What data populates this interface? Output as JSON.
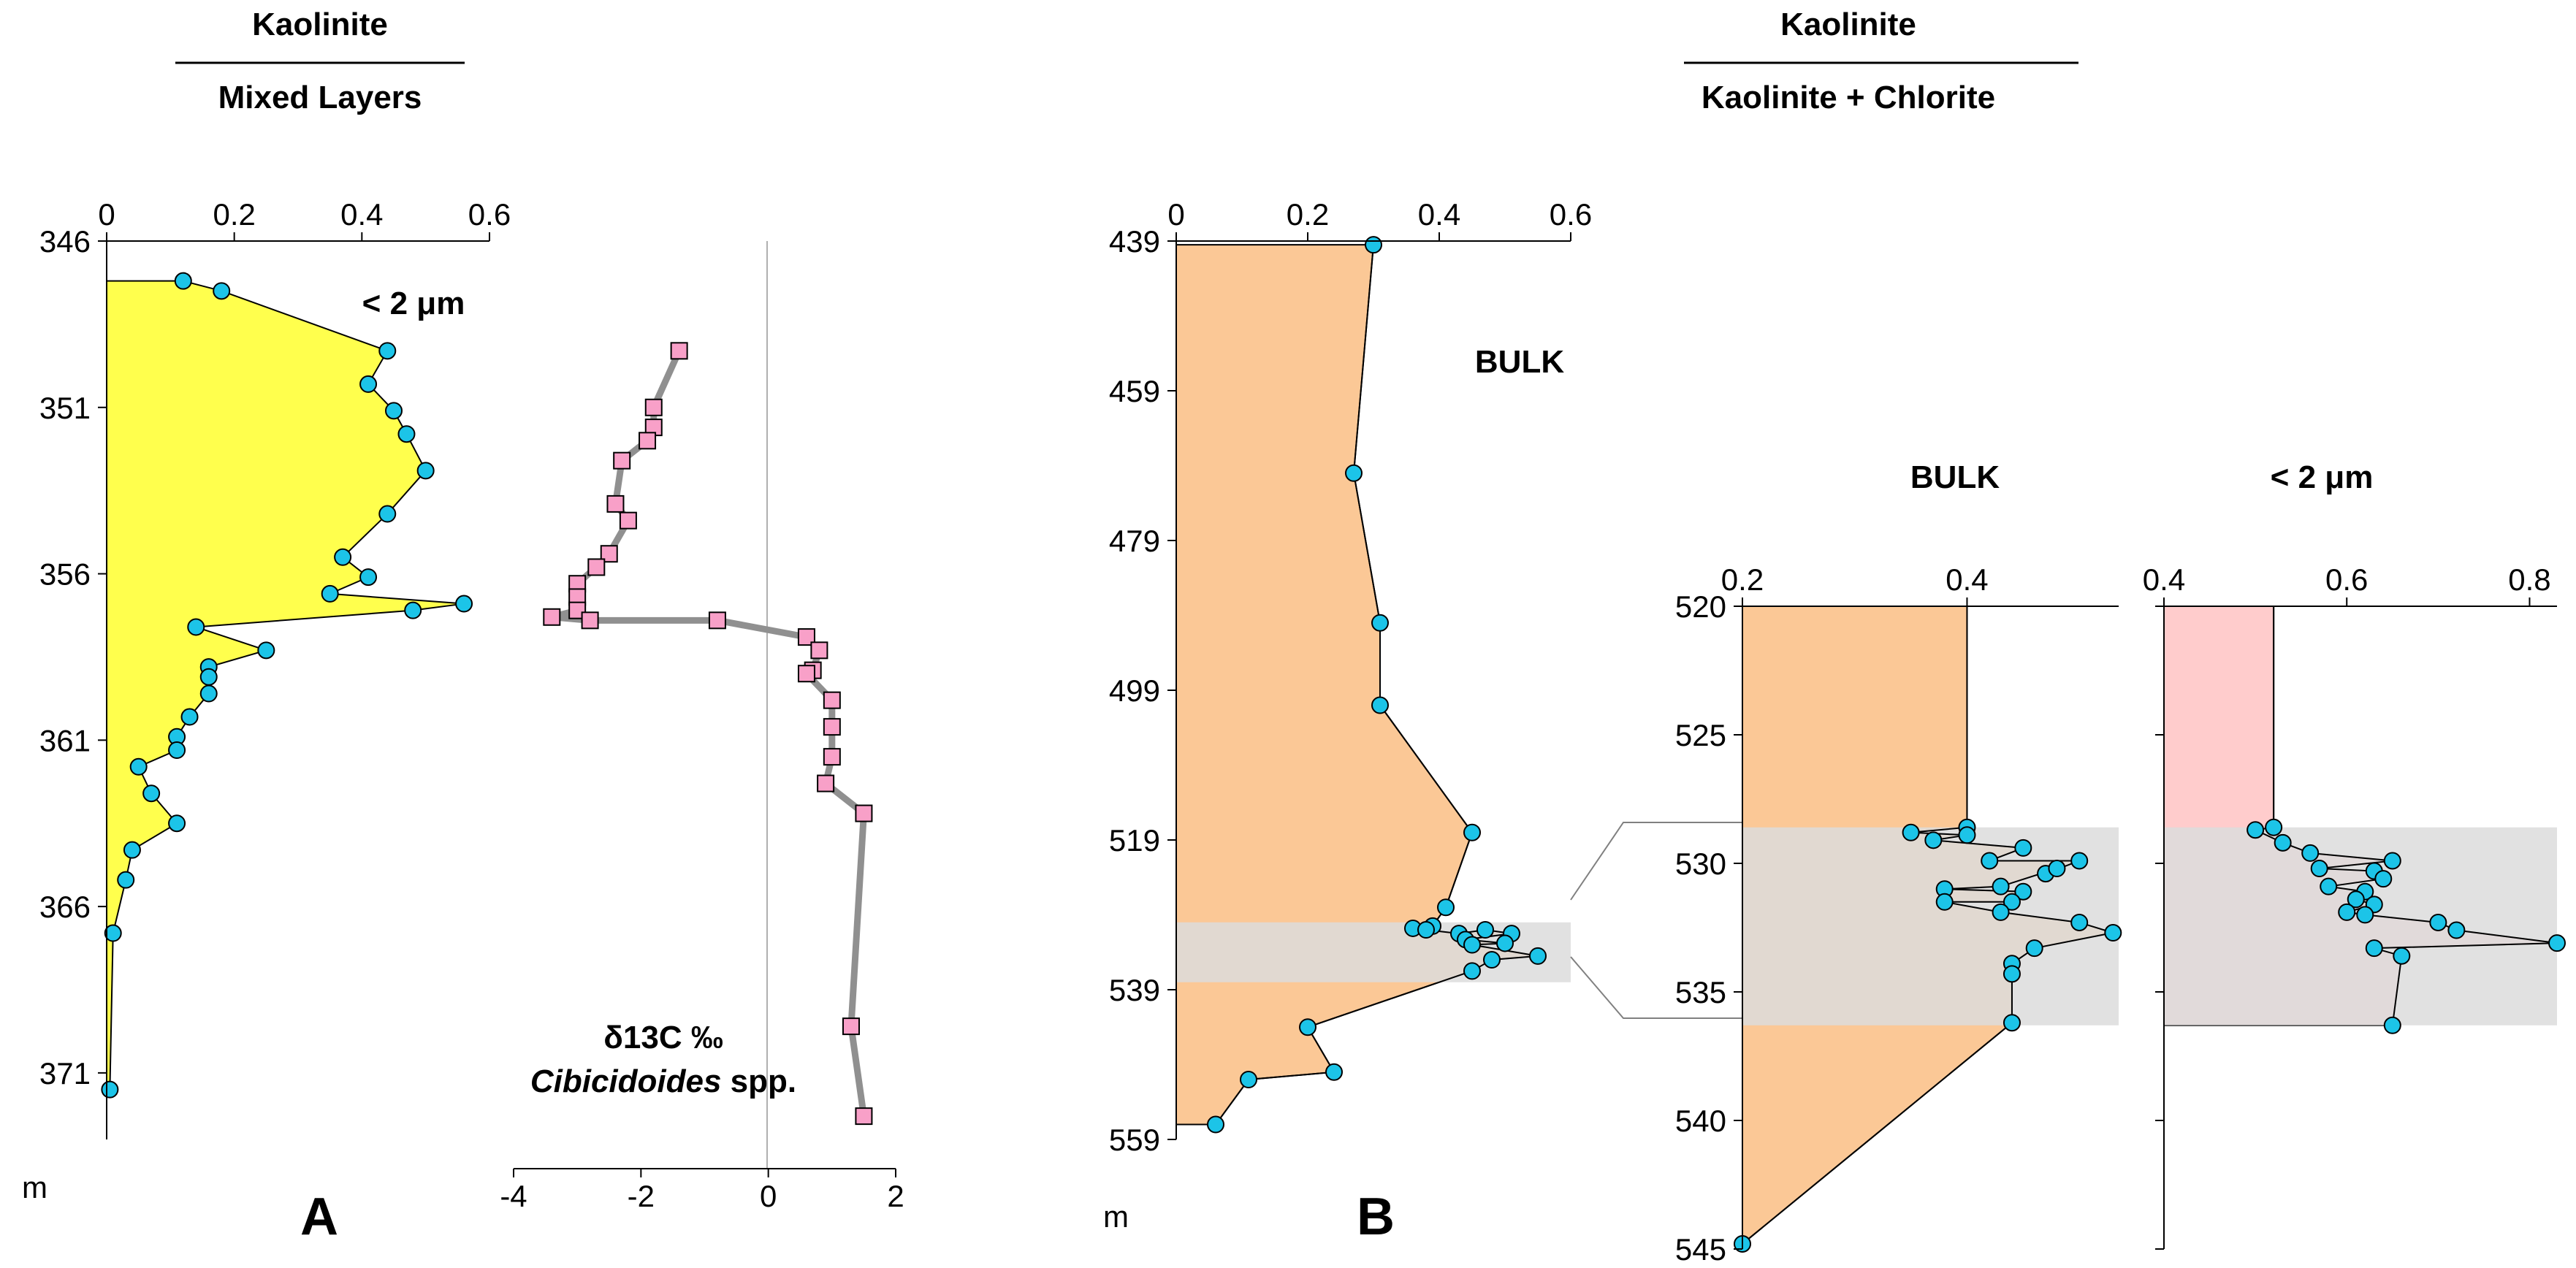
{
  "panel_letters": {
    "a": "A",
    "b": "B"
  },
  "colors": {
    "yellow_fill": "#ffff4d",
    "orange_fill": "#fbc896",
    "pink_fill": "#ffcccc",
    "band_grey": "#dcdcdc",
    "marker_cyan": "#1cc4e8",
    "marker_pink": "#f8a0c8",
    "d13c_line": "#909090"
  },
  "chart_data": [
    {
      "id": "A_ratio",
      "type": "area",
      "title_top": "Kaolinite",
      "title_bottom": "Mixed Layers",
      "series_label": "< 2 μm",
      "x_ticks": [
        "0",
        "0.2",
        "0.4",
        "0.6"
      ],
      "x_range": [
        0,
        0.6
      ],
      "y_ticks": [
        "346",
        "351",
        "356",
        "361",
        "366",
        "371"
      ],
      "y_range": [
        346,
        373
      ],
      "y_unit": "m",
      "points": [
        {
          "x": 0.12,
          "y": 347.2
        },
        {
          "x": 0.18,
          "y": 347.5
        },
        {
          "x": 0.44,
          "y": 349.3
        },
        {
          "x": 0.41,
          "y": 350.3
        },
        {
          "x": 0.45,
          "y": 351.1
        },
        {
          "x": 0.47,
          "y": 351.8
        },
        {
          "x": 0.5,
          "y": 352.9
        },
        {
          "x": 0.44,
          "y": 354.2
        },
        {
          "x": 0.37,
          "y": 355.5
        },
        {
          "x": 0.41,
          "y": 356.1
        },
        {
          "x": 0.35,
          "y": 356.6
        },
        {
          "x": 0.56,
          "y": 356.9
        },
        {
          "x": 0.48,
          "y": 357.1
        },
        {
          "x": 0.14,
          "y": 357.6
        },
        {
          "x": 0.25,
          "y": 358.3
        },
        {
          "x": 0.16,
          "y": 358.8
        },
        {
          "x": 0.16,
          "y": 359.1
        },
        {
          "x": 0.16,
          "y": 359.6
        },
        {
          "x": 0.13,
          "y": 360.3
        },
        {
          "x": 0.11,
          "y": 360.9
        },
        {
          "x": 0.11,
          "y": 361.3
        },
        {
          "x": 0.05,
          "y": 361.8
        },
        {
          "x": 0.07,
          "y": 362.6
        },
        {
          "x": 0.11,
          "y": 363.5
        },
        {
          "x": 0.04,
          "y": 364.3
        },
        {
          "x": 0.03,
          "y": 365.2
        },
        {
          "x": 0.01,
          "y": 366.8
        },
        {
          "x": 0.005,
          "y": 371.5
        }
      ]
    },
    {
      "id": "A_d13c",
      "type": "line",
      "label_line1": "δ13C ‰",
      "label_line2_italic": "Cibicidoides",
      "label_line2_rest": " spp.",
      "x_ticks": [
        "-4",
        "-2",
        "0",
        "2"
      ],
      "x_range": [
        -4,
        2
      ],
      "y_range": [
        346,
        373
      ],
      "points": [
        {
          "x": -1.4,
          "y": 349.3
        },
        {
          "x": -1.8,
          "y": 351.0
        },
        {
          "x": -1.8,
          "y": 351.6
        },
        {
          "x": -1.9,
          "y": 352.0
        },
        {
          "x": -2.3,
          "y": 352.6
        },
        {
          "x": -2.4,
          "y": 353.9
        },
        {
          "x": -2.2,
          "y": 354.4
        },
        {
          "x": -2.5,
          "y": 355.4
        },
        {
          "x": -2.7,
          "y": 355.8
        },
        {
          "x": -3.0,
          "y": 356.3
        },
        {
          "x": -3.0,
          "y": 356.7
        },
        {
          "x": -3.0,
          "y": 357.1
        },
        {
          "x": -3.4,
          "y": 357.3
        },
        {
          "x": -2.8,
          "y": 357.4
        },
        {
          "x": -0.8,
          "y": 357.4
        },
        {
          "x": 0.6,
          "y": 357.9
        },
        {
          "x": 0.8,
          "y": 358.3
        },
        {
          "x": 0.7,
          "y": 358.9
        },
        {
          "x": 0.6,
          "y": 359.0
        },
        {
          "x": 1.0,
          "y": 359.8
        },
        {
          "x": 1.0,
          "y": 360.6
        },
        {
          "x": 1.0,
          "y": 361.5
        },
        {
          "x": 0.9,
          "y": 362.3
        },
        {
          "x": 1.5,
          "y": 363.2
        },
        {
          "x": 1.3,
          "y": 369.6
        },
        {
          "x": 1.5,
          "y": 372.3
        }
      ]
    },
    {
      "id": "B_bulk_full",
      "type": "area",
      "title_top": "Kaolinite",
      "title_bottom": "Kaolinite + Chlorite",
      "series_label": "BULK",
      "x_ticks": [
        "0",
        "0.2",
        "0.4",
        "0.6"
      ],
      "x_range": [
        0,
        0.6
      ],
      "y_ticks": [
        "439",
        "459",
        "479",
        "499",
        "519",
        "539",
        "559"
      ],
      "y_range": [
        439,
        559
      ],
      "y_unit": "m",
      "band_range": [
        530,
        538
      ],
      "points": [
        {
          "x": 0.3,
          "y": 439.5
        },
        {
          "x": 0.27,
          "y": 470
        },
        {
          "x": 0.31,
          "y": 490
        },
        {
          "x": 0.31,
          "y": 501
        },
        {
          "x": 0.45,
          "y": 518
        },
        {
          "x": 0.41,
          "y": 528
        },
        {
          "x": 0.39,
          "y": 530.5
        },
        {
          "x": 0.36,
          "y": 530.8
        },
        {
          "x": 0.38,
          "y": 531
        },
        {
          "x": 0.43,
          "y": 531.5
        },
        {
          "x": 0.47,
          "y": 531
        },
        {
          "x": 0.51,
          "y": 531.5
        },
        {
          "x": 0.44,
          "y": 532.3
        },
        {
          "x": 0.5,
          "y": 532.8
        },
        {
          "x": 0.45,
          "y": 533
        },
        {
          "x": 0.55,
          "y": 534.5
        },
        {
          "x": 0.48,
          "y": 535
        },
        {
          "x": 0.45,
          "y": 536.5
        },
        {
          "x": 0.2,
          "y": 544
        },
        {
          "x": 0.24,
          "y": 550
        },
        {
          "x": 0.11,
          "y": 551
        },
        {
          "x": 0.06,
          "y": 557
        }
      ]
    },
    {
      "id": "B_bulk_zoom",
      "type": "area",
      "title": "BULK",
      "x_ticks": [
        "0.2",
        "0.4"
      ],
      "x_range": [
        0.2,
        0.535
      ],
      "y_ticks": [
        "520",
        "525",
        "530",
        "535",
        "540",
        "545"
      ],
      "y_range": [
        520,
        545
      ],
      "band_range": [
        528.6,
        536.3
      ],
      "points": [
        {
          "x": 0.4,
          "y": 520
        },
        {
          "x": 0.4,
          "y": 528.6
        },
        {
          "x": 0.35,
          "y": 528.8
        },
        {
          "x": 0.4,
          "y": 528.9
        },
        {
          "x": 0.37,
          "y": 529.1
        },
        {
          "x": 0.45,
          "y": 529.4
        },
        {
          "x": 0.42,
          "y": 529.9
        },
        {
          "x": 0.5,
          "y": 529.9
        },
        {
          "x": 0.47,
          "y": 530.4
        },
        {
          "x": 0.48,
          "y": 530.2
        },
        {
          "x": 0.43,
          "y": 530.9
        },
        {
          "x": 0.38,
          "y": 531
        },
        {
          "x": 0.45,
          "y": 531.1
        },
        {
          "x": 0.44,
          "y": 531.5
        },
        {
          "x": 0.38,
          "y": 531.5
        },
        {
          "x": 0.43,
          "y": 531.9
        },
        {
          "x": 0.5,
          "y": 532.3
        },
        {
          "x": 0.53,
          "y": 532.7
        },
        {
          "x": 0.46,
          "y": 533.3
        },
        {
          "x": 0.44,
          "y": 533.9
        },
        {
          "x": 0.44,
          "y": 534.3
        },
        {
          "x": 0.44,
          "y": 536.2
        },
        {
          "x": 0.2,
          "y": 544.8
        }
      ]
    },
    {
      "id": "B_fine_zoom",
      "type": "area",
      "title": "< 2 μm",
      "x_ticks": [
        "0.4",
        "0.6",
        "0.8"
      ],
      "x_range": [
        0.4,
        0.83
      ],
      "y_range": [
        520,
        545
      ],
      "band_range": [
        528.6,
        536.3
      ],
      "points": [
        {
          "x": 0.52,
          "y": 520
        },
        {
          "x": 0.52,
          "y": 528.6
        },
        {
          "x": 0.5,
          "y": 528.7
        },
        {
          "x": 0.53,
          "y": 529.2
        },
        {
          "x": 0.56,
          "y": 529.6
        },
        {
          "x": 0.65,
          "y": 529.9
        },
        {
          "x": 0.57,
          "y": 530.2
        },
        {
          "x": 0.63,
          "y": 530.3
        },
        {
          "x": 0.64,
          "y": 530.6
        },
        {
          "x": 0.58,
          "y": 530.9
        },
        {
          "x": 0.62,
          "y": 531.1
        },
        {
          "x": 0.61,
          "y": 531.4
        },
        {
          "x": 0.63,
          "y": 531.6
        },
        {
          "x": 0.6,
          "y": 531.9
        },
        {
          "x": 0.62,
          "y": 532
        },
        {
          "x": 0.7,
          "y": 532.3
        },
        {
          "x": 0.72,
          "y": 532.6
        },
        {
          "x": 0.83,
          "y": 533.1
        },
        {
          "x": 0.63,
          "y": 533.3
        },
        {
          "x": 0.66,
          "y": 533.6
        },
        {
          "x": 0.65,
          "y": 536.3
        }
      ]
    }
  ]
}
